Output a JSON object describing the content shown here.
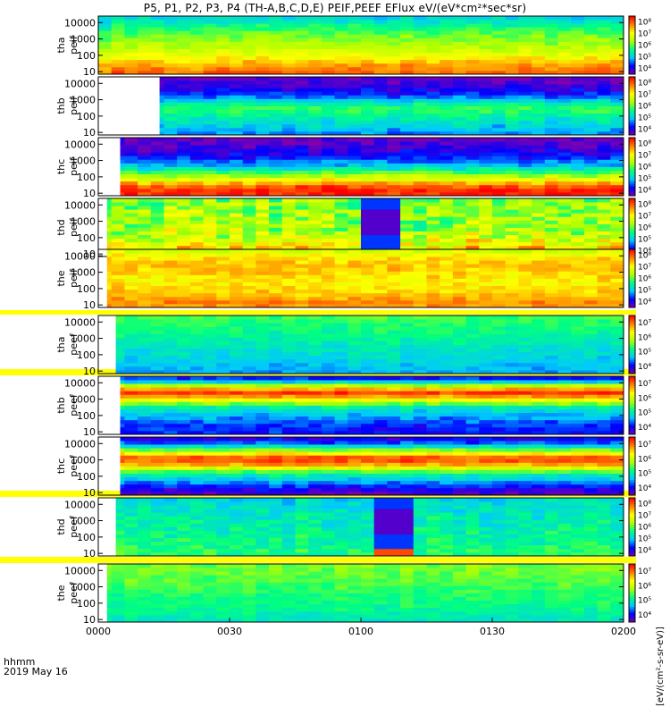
{
  "title": "P5, P1, P2, P3, P4 (TH-A,B,C,D,E) PEIF,PEEF EFlux eV/(eV*cm²*sec*sr)",
  "time_label": {
    "line1": "hhmm",
    "line2": "2019 May 16"
  },
  "colorbar_unit": "[eV/(cm²-s-sr-eV)]",
  "colors": {
    "colormap": [
      "#8000b0",
      "#0000ff",
      "#00c8ff",
      "#00ff80",
      "#b0ff00",
      "#ffff00",
      "#ff8000",
      "#ff0000"
    ],
    "background": "#ffffff",
    "separator": "#ffff00"
  },
  "chart_data": {
    "type": "heatmap",
    "x_axis": {
      "label": "hhmm",
      "date": "2019 May 16",
      "ticks": [
        "0000",
        "0030",
        "0100",
        "0130",
        "0200"
      ],
      "range_minutes": [
        0,
        120
      ]
    },
    "y_axis": {
      "scale": "log",
      "ticks": [
        "10",
        "100",
        "1000",
        "10000"
      ],
      "range_eV": [
        7,
        25000
      ]
    },
    "panels": [
      {
        "name": "tha peif",
        "label_top": "tha",
        "label_bottom": "peif",
        "color_ticks": [
          "10⁴",
          "10⁵",
          "10⁶",
          "10⁷",
          "10⁸"
        ],
        "data_start_min": 0,
        "profile": [
          0.9,
          0.85,
          0.8,
          0.72,
          0.65,
          0.6,
          0.56,
          0.52,
          0.48,
          0.42,
          0.36,
          0.3
        ],
        "variability": 0.05
      },
      {
        "name": "thb peif",
        "label_top": "thb",
        "label_bottom": "peif",
        "color_ticks": [
          "10⁴",
          "10⁵",
          "10⁶",
          "10⁷",
          "10⁸"
        ],
        "data_start_min": 14,
        "profile": [
          0.22,
          0.28,
          0.32,
          0.36,
          0.42,
          0.46,
          0.38,
          0.24,
          0.14,
          0.09,
          0.06,
          0.03
        ],
        "variability": 0.05
      },
      {
        "name": "thc peif",
        "label_top": "thc",
        "label_bottom": "peif",
        "color_ticks": [
          "10⁴",
          "10⁵",
          "10⁶",
          "10⁷",
          "10⁸"
        ],
        "data_start_min": 5,
        "profile": [
          0.95,
          0.97,
          0.88,
          0.7,
          0.55,
          0.38,
          0.26,
          0.18,
          0.12,
          0.08,
          0.05,
          0.02
        ],
        "variability": 0.06
      },
      {
        "name": "thd peif",
        "label_top": "thd",
        "label_bottom": "peif",
        "color_ticks": [
          "10⁴",
          "10⁵",
          "10⁶",
          "10⁷",
          "10⁸"
        ],
        "data_start_min": 2,
        "profile": [
          0.88,
          0.8,
          0.72,
          0.66,
          0.6,
          0.58,
          0.57,
          0.56,
          0.56,
          0.55,
          0.55,
          0.54
        ],
        "variability": 0.12,
        "dip_start_min": 60,
        "dip_end_min": 68
      },
      {
        "name": "the peif",
        "label_top": "the",
        "label_bottom": "peif",
        "color_ticks": [
          "10⁴",
          "10⁵",
          "10⁶",
          "10⁷",
          "10⁸"
        ],
        "data_start_min": 2,
        "profile": [
          0.82,
          0.85,
          0.8,
          0.76,
          0.74,
          0.72,
          0.74,
          0.77,
          0.78,
          0.76,
          0.7,
          0.6
        ],
        "variability": 0.05
      },
      {
        "name": "tha peef",
        "label_top": "tha",
        "label_bottom": "peef",
        "color_ticks": [
          "10⁴",
          "10⁵",
          "10⁶",
          "10⁷"
        ],
        "data_start_min": 4,
        "profile": [
          0.26,
          0.28,
          0.3,
          0.32,
          0.34,
          0.36,
          0.38,
          0.4,
          0.42,
          0.44,
          0.46,
          0.48
        ],
        "variability": 0.04
      },
      {
        "name": "thb peef",
        "label_top": "thb",
        "label_bottom": "peef",
        "color_ticks": [
          "10⁴",
          "10⁵",
          "10⁶",
          "10⁷"
        ],
        "data_start_min": 5,
        "profile": [
          0.16,
          0.15,
          0.18,
          0.24,
          0.3,
          0.36,
          0.55,
          0.8,
          0.95,
          0.7,
          0.3,
          0.1
        ],
        "variability": 0.05
      },
      {
        "name": "thc peef",
        "label_top": "thc",
        "label_bottom": "peef",
        "color_ticks": [
          "10⁴",
          "10⁵",
          "10⁶",
          "10⁷"
        ],
        "data_start_min": 5,
        "profile": [
          0.04,
          0.1,
          0.2,
          0.3,
          0.4,
          0.6,
          0.85,
          0.95,
          0.7,
          0.4,
          0.2,
          0.08
        ],
        "variability": 0.05
      },
      {
        "name": "thd peef",
        "label_top": "thd",
        "label_bottom": "peef",
        "color_ticks": [
          "10⁴",
          "10⁵",
          "10⁶",
          "10⁷",
          "10⁸"
        ],
        "data_start_min": 4,
        "profile": [
          0.44,
          0.44,
          0.42,
          0.42,
          0.4,
          0.4,
          0.38,
          0.38,
          0.36,
          0.36,
          0.34,
          0.32
        ],
        "variability": 0.06,
        "dip_start_min": 64,
        "dip_end_min": 72
      },
      {
        "name": "the peef",
        "label_top": "the",
        "label_bottom": "peef",
        "color_ticks": [
          "10⁴",
          "10⁵",
          "10⁶",
          "10⁷"
        ],
        "data_start_min": 2,
        "profile": [
          0.36,
          0.38,
          0.4,
          0.42,
          0.44,
          0.44,
          0.46,
          0.48,
          0.5,
          0.5,
          0.52,
          0.52
        ],
        "variability": 0.04
      }
    ]
  }
}
